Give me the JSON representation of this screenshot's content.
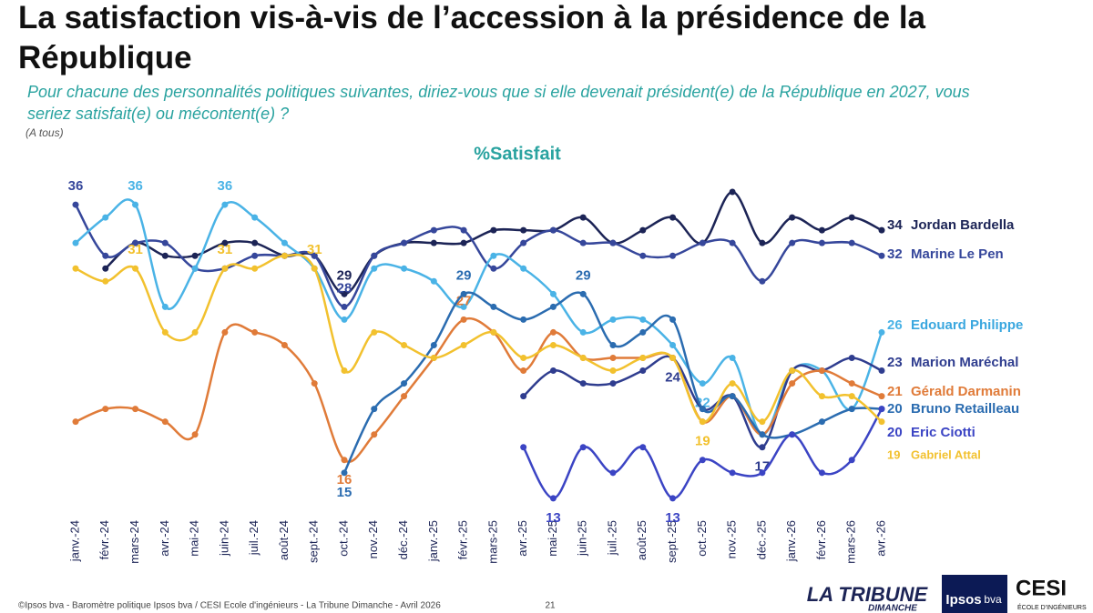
{
  "chart_data": {
    "type": "line",
    "title": "La satisfaction vis-à-vis de l’accession à la présidence de la République",
    "subtitle": "Pour chacune des personnalités politiques suivantes, diriez-vous que si elle devenait président(e) de la République en 2027, vous seriez satisfait(e) ou mécontent(e) ?",
    "note": "(A tous)",
    "chart_title": "%Satisfait",
    "categories": [
      "janv.-24",
      "févr.-24",
      "mars-24",
      "avr.-24",
      "mai-24",
      "juin-24",
      "juil.-24",
      "août-24",
      "sept.-24",
      "oct.-24",
      "nov.-24",
      "déc.-24",
      "janv.-25",
      "févr.-25",
      "mars-25",
      "avr.-25",
      "mai-25",
      "juin-25",
      "juil.-25",
      "août-25",
      "sept.-25",
      "oct.-25",
      "nov.-25",
      "déc.-25",
      "janv.-26",
      "févr.-26",
      "mars-26",
      "avr.-26"
    ],
    "ylim": [
      10,
      38
    ],
    "series": [
      {
        "name": "Jordan Bardella",
        "color": "#1c2456",
        "labeled_points": [
          9
        ],
        "values": [
          null,
          31,
          33,
          32,
          32,
          33,
          33,
          32,
          32,
          29,
          32,
          33,
          33,
          33,
          34,
          34,
          34,
          35,
          33,
          34,
          35,
          33,
          37,
          33,
          35,
          34,
          35,
          34
        ]
      },
      {
        "name": "Marine Le Pen",
        "color": "#36479b",
        "labeled_points": [
          0,
          9
        ],
        "values": [
          36,
          32,
          33,
          33,
          31,
          31,
          32,
          32,
          32,
          28,
          32,
          33,
          34,
          34,
          31,
          33,
          34,
          33,
          33,
          32,
          32,
          33,
          33,
          30,
          33,
          33,
          33,
          32
        ]
      },
      {
        "name": "Edouard Philippe",
        "color": "#4ab3e6",
        "labeled_points": [
          2,
          5,
          21
        ],
        "values": [
          33,
          35,
          36,
          28,
          31,
          36,
          35,
          33,
          31,
          27,
          31,
          31,
          30,
          28,
          32,
          31,
          29,
          26,
          27,
          27,
          25,
          22,
          24,
          18,
          23,
          23,
          20,
          26
        ]
      },
      {
        "name": "Marion Maréchal",
        "color": "#2f3d8f",
        "labeled_points": [
          20,
          23
        ],
        "values": [
          null,
          null,
          null,
          null,
          null,
          null,
          null,
          null,
          null,
          null,
          null,
          null,
          null,
          null,
          null,
          21,
          23,
          22,
          22,
          23,
          24,
          20,
          21,
          17,
          23,
          23,
          24,
          23
        ]
      },
      {
        "name": "Gérald Darmanin",
        "color": "#e07b39",
        "labeled_points": [
          9,
          13
        ],
        "values": [
          19,
          20,
          20,
          19,
          18,
          26,
          26,
          25,
          22,
          16,
          18,
          21,
          24,
          27,
          26,
          23,
          26,
          24,
          24,
          24,
          24,
          19,
          21,
          18,
          22,
          23,
          22,
          21
        ]
      },
      {
        "name": "Bruno Retailleau",
        "color": "#2b6cb0",
        "labeled_points": [
          9,
          13,
          17
        ],
        "values": [
          null,
          null,
          null,
          null,
          null,
          null,
          null,
          null,
          null,
          15,
          20,
          22,
          25,
          29,
          28,
          27,
          28,
          29,
          25,
          26,
          27,
          20,
          21,
          18,
          18,
          19,
          20,
          20
        ]
      },
      {
        "name": "Eric Ciotti",
        "color": "#3b44c4",
        "labeled_points": [
          16,
          20
        ],
        "values": [
          null,
          null,
          null,
          null,
          null,
          null,
          null,
          null,
          null,
          null,
          null,
          null,
          null,
          null,
          null,
          17,
          13,
          17,
          15,
          17,
          13,
          16,
          15,
          15,
          18,
          15,
          16,
          20
        ]
      },
      {
        "name": "Gabriel Attal",
        "color": "#f2c12e",
        "labeled_points": [
          2,
          5,
          8,
          21
        ],
        "values": [
          31,
          30,
          31,
          26,
          26,
          31,
          31,
          32,
          31,
          23,
          26,
          25,
          24,
          25,
          26,
          24,
          25,
          24,
          23,
          24,
          24,
          19,
          22,
          19,
          23,
          21,
          21,
          19
        ]
      }
    ]
  },
  "footer": {
    "source": "©Ipsos bva - Baromètre politique Ipsos bva / CESI Ecole d'ingénieurs - La Tribune Dimanche - Avril 2026",
    "page": "21"
  },
  "logos": {
    "tribune": "LA TRIBUNE",
    "dimanche": "DIMANCHE",
    "ipsos": "Ipsos",
    "bva": "bva",
    "cesi": "CESI",
    "cesi_sub": "ÉCOLE D'INGÉNIEURS"
  }
}
